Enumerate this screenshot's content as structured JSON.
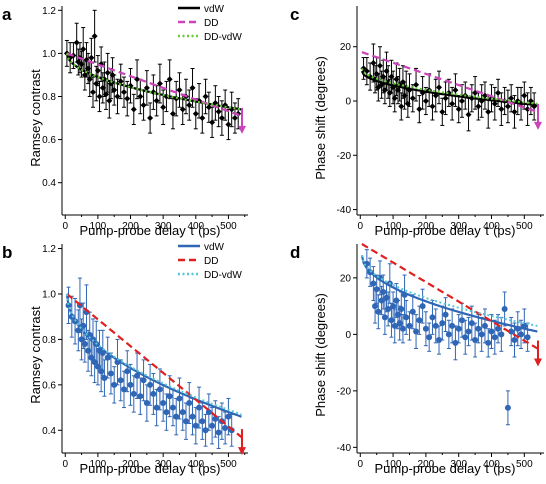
{
  "chart_data": [
    {
      "panel_label": "a",
      "type": "line",
      "xlabel": "Pump-probe delay τ (ps)",
      "ylabel": "Ramsey contrast",
      "xlim": [
        -10,
        560
      ],
      "ylim": [
        0.25,
        1.22
      ],
      "xticks": [
        "0",
        "100",
        "200",
        "300",
        "400",
        "500"
      ],
      "yticks": [
        "0.4",
        "0.6",
        "0.8",
        "1.0",
        "1.2"
      ],
      "legend": [
        {
          "name": "vdW",
          "color": "#000000",
          "dash": "solid"
        },
        {
          "name": "DD",
          "color": "#cc44bb",
          "dash": "dashed"
        },
        {
          "name": "DD-vdW",
          "color": "#66cc33",
          "dash": "dotted"
        }
      ],
      "legend_placement": "top-right",
      "marker_color": "#000000",
      "arrow_color": "#cc44bb",
      "fits": {
        "vdW": [
          1.0,
          0.74
        ],
        "DD": [
          1.0,
          0.71
        ],
        "DD-vdW": [
          1.0,
          0.74
        ]
      },
      "points": [
        [
          5,
          1.0,
          0.06
        ],
        [
          15,
          0.98,
          0.07
        ],
        [
          25,
          0.99,
          0.06
        ],
        [
          35,
          1.05,
          0.09
        ],
        [
          40,
          0.96,
          0.06
        ],
        [
          45,
          0.98,
          0.07
        ],
        [
          50,
          0.95,
          0.06
        ],
        [
          55,
          1.02,
          0.1
        ],
        [
          60,
          0.9,
          0.07
        ],
        [
          65,
          0.97,
          0.08
        ],
        [
          70,
          0.93,
          0.07
        ],
        [
          75,
          0.88,
          0.08
        ],
        [
          80,
          0.98,
          0.09
        ],
        [
          85,
          0.82,
          0.07
        ],
        [
          90,
          1.08,
          0.12
        ],
        [
          95,
          0.86,
          0.08
        ],
        [
          100,
          0.92,
          0.07
        ],
        [
          105,
          0.8,
          0.07
        ],
        [
          110,
          0.95,
          0.08
        ],
        [
          115,
          0.84,
          0.07
        ],
        [
          120,
          0.88,
          0.08
        ],
        [
          125,
          0.81,
          0.07
        ],
        [
          130,
          0.91,
          0.09
        ],
        [
          135,
          0.78,
          0.08
        ],
        [
          140,
          0.86,
          0.07
        ],
        [
          145,
          0.9,
          0.08
        ],
        [
          150,
          0.83,
          0.07
        ],
        [
          160,
          0.8,
          0.08
        ],
        [
          170,
          0.87,
          0.08
        ],
        [
          180,
          0.82,
          0.07
        ],
        [
          190,
          0.79,
          0.08
        ],
        [
          200,
          0.85,
          0.08
        ],
        [
          210,
          0.74,
          0.07
        ],
        [
          220,
          0.88,
          0.09
        ],
        [
          230,
          0.8,
          0.08
        ],
        [
          240,
          0.76,
          0.07
        ],
        [
          250,
          0.84,
          0.08
        ],
        [
          260,
          0.7,
          0.07
        ],
        [
          270,
          0.82,
          0.08
        ],
        [
          280,
          0.78,
          0.07
        ],
        [
          290,
          0.86,
          0.09
        ],
        [
          300,
          0.75,
          0.08
        ],
        [
          310,
          0.8,
          0.07
        ],
        [
          320,
          0.88,
          0.09
        ],
        [
          330,
          0.72,
          0.07
        ],
        [
          340,
          0.79,
          0.08
        ],
        [
          350,
          0.83,
          0.08
        ],
        [
          360,
          0.74,
          0.07
        ],
        [
          370,
          0.8,
          0.08
        ],
        [
          380,
          0.76,
          0.07
        ],
        [
          390,
          0.84,
          0.09
        ],
        [
          400,
          0.72,
          0.07
        ],
        [
          410,
          0.78,
          0.08
        ],
        [
          420,
          0.7,
          0.07
        ],
        [
          430,
          0.8,
          0.08
        ],
        [
          440,
          0.75,
          0.07
        ],
        [
          450,
          0.68,
          0.07
        ],
        [
          460,
          0.77,
          0.08
        ],
        [
          470,
          0.73,
          0.07
        ],
        [
          480,
          0.7,
          0.08
        ],
        [
          490,
          0.76,
          0.07
        ],
        [
          500,
          0.67,
          0.07
        ],
        [
          510,
          0.74,
          0.08
        ],
        [
          520,
          0.7,
          0.07
        ],
        [
          530,
          0.72,
          0.07
        ]
      ]
    },
    {
      "panel_label": "c",
      "type": "line",
      "xlabel": "Pump-probe delay τ (ps)",
      "ylabel": "Phase shift (degrees)",
      "xlim": [
        -10,
        560
      ],
      "ylim": [
        -42,
        35
      ],
      "xticks": [
        "0",
        "100",
        "200",
        "300",
        "400",
        "500"
      ],
      "yticks": [
        "-40",
        "-20",
        "0",
        "20"
      ],
      "legend": [],
      "legend_placement": "none",
      "marker_color": "#000000",
      "arrow_color": "#cc44bb",
      "fits": {
        "vdW": [
          11,
          -1.5
        ],
        "DD": [
          18,
          -4
        ],
        "DD-vdW": [
          12,
          -1
        ]
      },
      "points": [
        [
          10,
          12,
          4
        ],
        [
          20,
          11,
          5
        ],
        [
          30,
          9,
          5
        ],
        [
          40,
          14,
          7
        ],
        [
          45,
          8,
          5
        ],
        [
          50,
          10,
          6
        ],
        [
          55,
          5,
          5
        ],
        [
          60,
          13,
          7
        ],
        [
          65,
          6,
          5
        ],
        [
          70,
          9,
          6
        ],
        [
          75,
          4,
          5
        ],
        [
          80,
          11,
          7
        ],
        [
          85,
          7,
          6
        ],
        [
          90,
          3,
          5
        ],
        [
          95,
          9,
          6
        ],
        [
          100,
          5,
          6
        ],
        [
          105,
          1,
          5
        ],
        [
          110,
          8,
          6
        ],
        [
          115,
          4,
          5
        ],
        [
          120,
          6,
          6
        ],
        [
          125,
          -2,
          5
        ],
        [
          130,
          7,
          6
        ],
        [
          135,
          2,
          5
        ],
        [
          140,
          5,
          6
        ],
        [
          145,
          -1,
          5
        ],
        [
          150,
          4,
          6
        ],
        [
          160,
          1,
          5
        ],
        [
          170,
          6,
          6
        ],
        [
          180,
          -3,
          5
        ],
        [
          190,
          3,
          6
        ],
        [
          200,
          0,
          5
        ],
        [
          210,
          4,
          6
        ],
        [
          220,
          -2,
          5
        ],
        [
          230,
          2,
          6
        ],
        [
          240,
          5,
          6
        ],
        [
          250,
          -4,
          5
        ],
        [
          260,
          1,
          6
        ],
        [
          270,
          3,
          5
        ],
        [
          280,
          -1,
          6
        ],
        [
          290,
          4,
          6
        ],
        [
          300,
          -3,
          5
        ],
        [
          310,
          0,
          6
        ],
        [
          320,
          2,
          5
        ],
        [
          330,
          -5,
          6
        ],
        [
          340,
          1,
          5
        ],
        [
          350,
          3,
          6
        ],
        [
          360,
          -2,
          5
        ],
        [
          370,
          0,
          6
        ],
        [
          380,
          2,
          5
        ],
        [
          390,
          -4,
          6
        ],
        [
          400,
          1,
          5
        ],
        [
          410,
          -1,
          6
        ],
        [
          420,
          3,
          5
        ],
        [
          430,
          -3,
          6
        ],
        [
          440,
          0,
          5
        ],
        [
          450,
          -2,
          6
        ],
        [
          460,
          1,
          5
        ],
        [
          470,
          -4,
          6
        ],
        [
          480,
          0,
          5
        ],
        [
          490,
          -1,
          6
        ],
        [
          500,
          2,
          5
        ],
        [
          510,
          -3,
          6
        ],
        [
          520,
          0,
          5
        ],
        [
          530,
          -2,
          5
        ]
      ]
    },
    {
      "panel_label": "b",
      "type": "line",
      "xlabel": "Pump-probe delay τ (ps)",
      "ylabel": "Ramsey contrast",
      "xlim": [
        -10,
        560
      ],
      "ylim": [
        0.3,
        1.22
      ],
      "xticks": [
        "0",
        "100",
        "200",
        "300",
        "400",
        "500"
      ],
      "yticks": [
        "0.4",
        "0.6",
        "0.8",
        "1.0",
        "1.2"
      ],
      "legend": [
        {
          "name": "vdW",
          "color": "#2f66b5",
          "dash": "solid"
        },
        {
          "name": "DD",
          "color": "#e02020",
          "dash": "dashed"
        },
        {
          "name": "DD-vdW",
          "color": "#55c8d8",
          "dash": "dotted"
        }
      ],
      "legend_placement": "top-right",
      "marker_color": "#2f66b5",
      "arrow_color": "#e02020",
      "fits": {
        "vdW": [
          1.0,
          0.46
        ],
        "DD": [
          1.0,
          0.37
        ],
        "DD-vdW": [
          1.0,
          0.47
        ]
      },
      "points": [
        [
          10,
          0.95,
          0.08
        ],
        [
          20,
          0.9,
          0.09
        ],
        [
          30,
          0.88,
          0.1
        ],
        [
          40,
          0.84,
          0.09
        ],
        [
          45,
          0.95,
          0.12
        ],
        [
          50,
          0.8,
          0.09
        ],
        [
          55,
          0.86,
          0.1
        ],
        [
          60,
          0.78,
          0.08
        ],
        [
          65,
          0.92,
          0.12
        ],
        [
          70,
          0.75,
          0.09
        ],
        [
          75,
          0.82,
          0.1
        ],
        [
          80,
          0.72,
          0.08
        ],
        [
          85,
          0.8,
          0.09
        ],
        [
          90,
          0.7,
          0.09
        ],
        [
          95,
          0.78,
          0.1
        ],
        [
          100,
          0.68,
          0.08
        ],
        [
          105,
          0.75,
          0.09
        ],
        [
          110,
          0.66,
          0.09
        ],
        [
          115,
          0.74,
          0.1
        ],
        [
          120,
          0.63,
          0.08
        ],
        [
          130,
          0.72,
          0.09
        ],
        [
          140,
          0.65,
          0.09
        ],
        [
          150,
          0.6,
          0.08
        ],
        [
          160,
          0.7,
          0.1
        ],
        [
          170,
          0.62,
          0.09
        ],
        [
          180,
          0.58,
          0.08
        ],
        [
          190,
          0.66,
          0.09
        ],
        [
          200,
          0.6,
          0.09
        ],
        [
          210,
          0.56,
          0.08
        ],
        [
          220,
          0.64,
          0.1
        ],
        [
          230,
          0.55,
          0.08
        ],
        [
          240,
          0.62,
          0.09
        ],
        [
          250,
          0.52,
          0.08
        ],
        [
          260,
          0.6,
          0.09
        ],
        [
          270,
          0.56,
          0.09
        ],
        [
          280,
          0.5,
          0.08
        ],
        [
          290,
          0.58,
          0.09
        ],
        [
          300,
          0.52,
          0.08
        ],
        [
          310,
          0.48,
          0.08
        ],
        [
          320,
          0.55,
          0.09
        ],
        [
          330,
          0.5,
          0.08
        ],
        [
          340,
          0.46,
          0.08
        ],
        [
          350,
          0.54,
          0.09
        ],
        [
          360,
          0.48,
          0.08
        ],
        [
          370,
          0.44,
          0.08
        ],
        [
          380,
          0.52,
          0.09
        ],
        [
          390,
          0.46,
          0.08
        ],
        [
          400,
          0.42,
          0.08
        ],
        [
          410,
          0.5,
          0.09
        ],
        [
          420,
          0.44,
          0.08
        ],
        [
          430,
          0.4,
          0.07
        ],
        [
          440,
          0.48,
          0.08
        ],
        [
          450,
          0.42,
          0.08
        ],
        [
          460,
          0.45,
          0.08
        ],
        [
          470,
          0.39,
          0.07
        ],
        [
          480,
          0.44,
          0.08
        ],
        [
          490,
          0.41,
          0.07
        ],
        [
          500,
          0.46,
          0.08
        ],
        [
          510,
          0.4,
          0.07
        ]
      ]
    },
    {
      "panel_label": "d",
      "type": "line",
      "xlabel": "Pump-probe delay τ (ps)",
      "ylabel": "Phase shift (degrees)",
      "xlim": [
        -10,
        560
      ],
      "ylim": [
        -42,
        32
      ],
      "xticks": [
        "0",
        "100",
        "200",
        "300",
        "400",
        "500"
      ],
      "yticks": [
        "-40",
        "-20",
        "0",
        "20"
      ],
      "legend": [],
      "legend_placement": "none",
      "marker_color": "#2f66b5",
      "arrow_color": "#e02020",
      "fits": {
        "vdW": [
          28,
          1
        ],
        "DD": [
          32,
          -5
        ],
        "DD-vdW": [
          28,
          3
        ]
      },
      "points": [
        [
          20,
          25,
          5
        ],
        [
          30,
          22,
          5
        ],
        [
          40,
          18,
          6
        ],
        [
          45,
          10,
          6
        ],
        [
          50,
          16,
          5
        ],
        [
          55,
          8,
          6
        ],
        [
          60,
          20,
          6
        ],
        [
          65,
          12,
          5
        ],
        [
          70,
          15,
          6
        ],
        [
          75,
          6,
          6
        ],
        [
          80,
          13,
          5
        ],
        [
          85,
          9,
          6
        ],
        [
          90,
          18,
          7
        ],
        [
          95,
          5,
          6
        ],
        [
          100,
          10,
          5
        ],
        [
          105,
          3,
          6
        ],
        [
          110,
          12,
          6
        ],
        [
          115,
          7,
          5
        ],
        [
          120,
          4,
          6
        ],
        [
          125,
          9,
          6
        ],
        [
          130,
          2,
          5
        ],
        [
          135,
          14,
          7
        ],
        [
          140,
          6,
          6
        ],
        [
          150,
          3,
          5
        ],
        [
          160,
          8,
          6
        ],
        [
          170,
          1,
          6
        ],
        [
          180,
          5,
          5
        ],
        [
          190,
          10,
          6
        ],
        [
          200,
          2,
          6
        ],
        [
          210,
          -1,
          5
        ],
        [
          220,
          6,
          6
        ],
        [
          230,
          3,
          6
        ],
        [
          240,
          -2,
          5
        ],
        [
          250,
          4,
          6
        ],
        [
          260,
          7,
          6
        ],
        [
          270,
          0,
          5
        ],
        [
          280,
          3,
          6
        ],
        [
          290,
          -3,
          6
        ],
        [
          300,
          2,
          5
        ],
        [
          310,
          5,
          6
        ],
        [
          320,
          -1,
          6
        ],
        [
          330,
          1,
          5
        ],
        [
          340,
          4,
          6
        ],
        [
          350,
          -2,
          6
        ],
        [
          360,
          2,
          5
        ],
        [
          370,
          0,
          6
        ],
        [
          380,
          3,
          6
        ],
        [
          390,
          -3,
          5
        ],
        [
          400,
          1,
          6
        ],
        [
          410,
          -1,
          6
        ],
        [
          420,
          2,
          5
        ],
        [
          430,
          0,
          6
        ],
        [
          440,
          9,
          6
        ],
        [
          450,
          -26,
          6
        ],
        [
          460,
          1,
          5
        ],
        [
          470,
          -2,
          6
        ],
        [
          480,
          2,
          6
        ],
        [
          490,
          0,
          5
        ],
        [
          500,
          3,
          6
        ],
        [
          510,
          -1,
          5
        ]
      ]
    }
  ]
}
